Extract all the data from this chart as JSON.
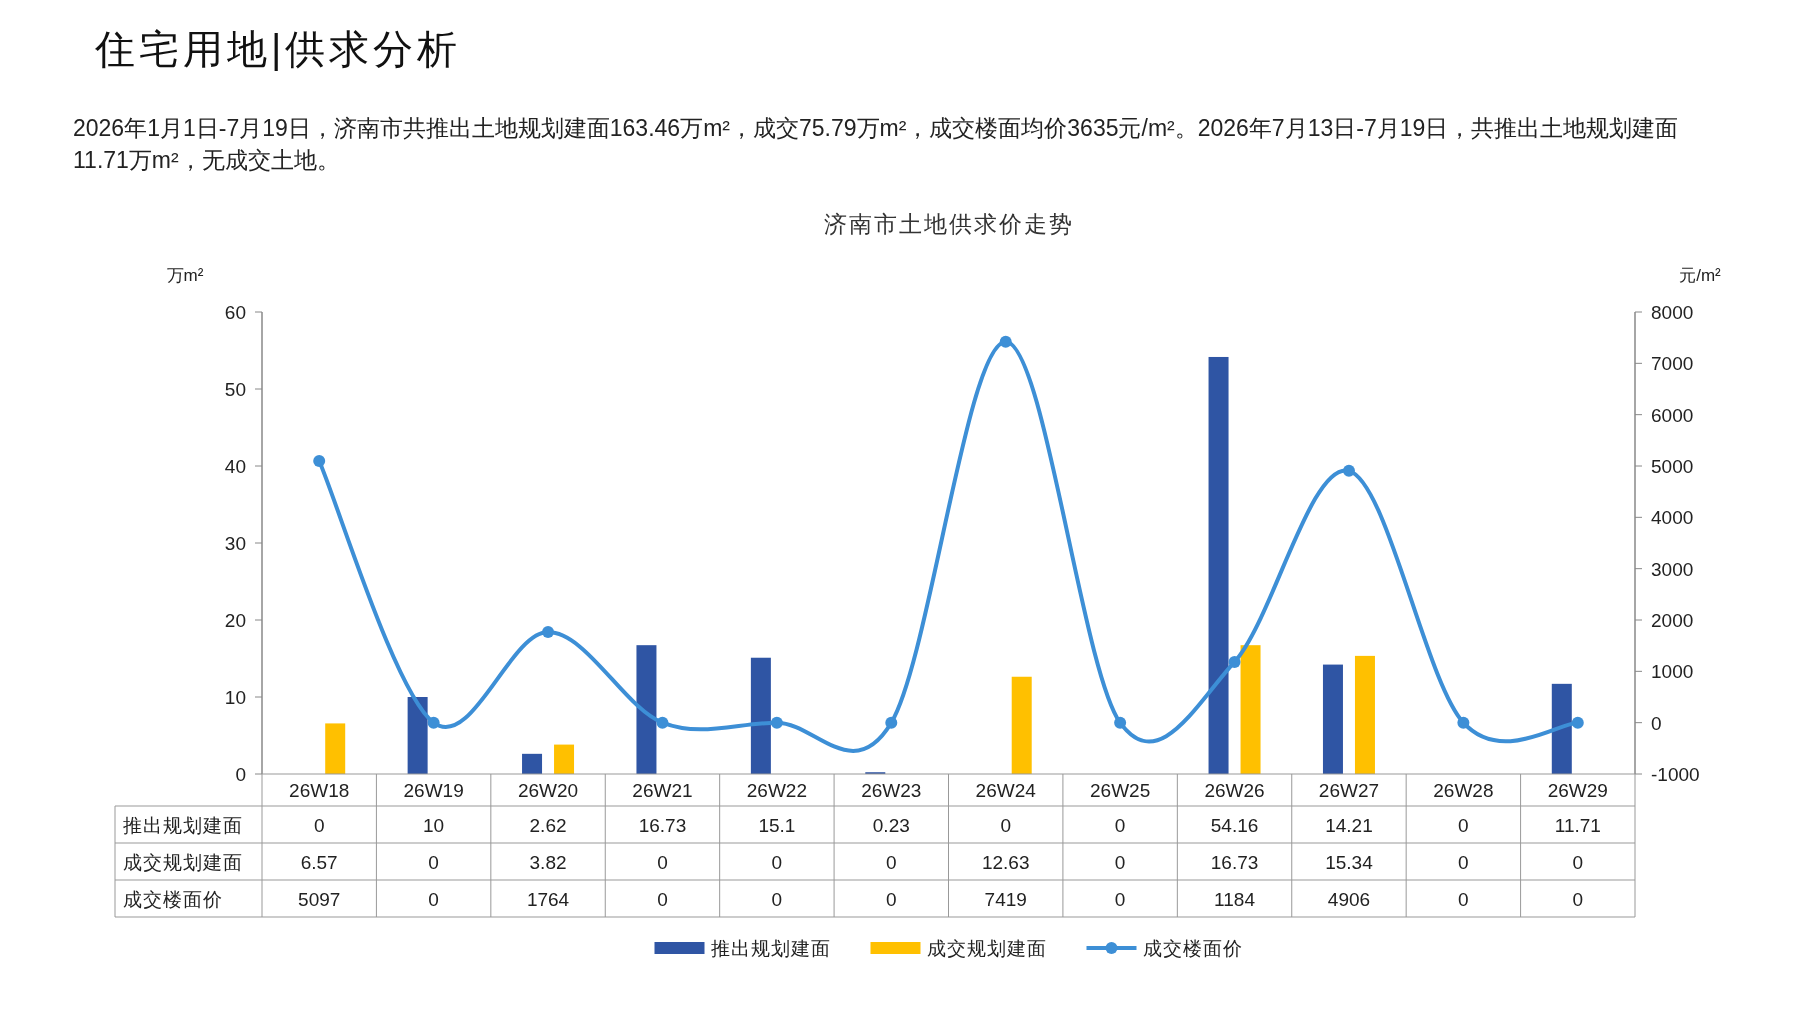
{
  "chart_data": {
    "type": "bar",
    "title": "住宅用地|供求分析",
    "subtitle": "济南市土地供求价走势",
    "annotations": [
      "2026年1月1日-7月19日，济南市共推出土地规划建面163.46万m²，成交75.79万m²，成交楼面均价3635元/m²。2026年7月13日-7月19日，共推出土地规划建面11.71万m²，无成交土地。"
    ],
    "ylabel": "万m²",
    "y2label": "元/m²",
    "categories": [
      "26W18",
      "26W19",
      "26W20",
      "26W21",
      "26W22",
      "26W23",
      "26W24",
      "26W25",
      "26W26",
      "26W27",
      "26W28",
      "26W29"
    ],
    "series": [
      {
        "name": "推出规划建面",
        "color": "#2f55a4",
        "values": [
          0,
          10,
          2.62,
          16.73,
          15.1,
          0.23,
          0,
          0,
          54.16,
          14.21,
          0,
          11.71
        ]
      },
      {
        "name": "成交规划建面",
        "color": "#ffc000",
        "values": [
          6.57,
          0,
          3.82,
          0,
          0,
          0,
          12.63,
          0,
          16.73,
          15.34,
          0,
          0
        ]
      },
      {
        "name": "成交楼面价",
        "type": "line",
        "axis": "y2",
        "color": "#3d8fd6",
        "values": [
          5097,
          0,
          1764,
          0,
          0,
          0,
          7419,
          0,
          1184,
          4906,
          0,
          0
        ]
      }
    ],
    "ylim": [
      0,
      60
    ],
    "yticks": [
      0,
      10,
      20,
      30,
      40,
      50,
      60
    ],
    "y2lim": [
      -1000,
      8000
    ],
    "y2ticks": [
      -1000,
      0,
      1000,
      2000,
      3000,
      4000,
      5000,
      6000,
      7000,
      8000
    ],
    "data_labels": true,
    "legend": "bottom",
    "marker": "circle"
  }
}
